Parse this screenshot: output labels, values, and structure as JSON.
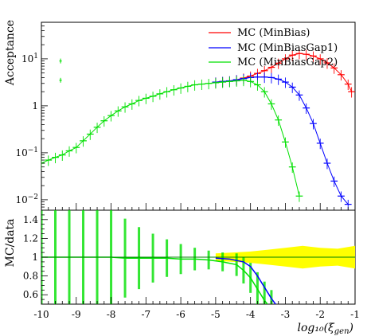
{
  "chart_data": [
    {
      "type": "line",
      "ylabel": "Acceptance",
      "y_scale": "log",
      "xlim": [
        -10,
        -1
      ],
      "ylim": [
        0.006,
        60
      ],
      "yticks": [
        {
          "value": 0.01,
          "base": "10",
          "exp": "−2"
        },
        {
          "value": 0.1,
          "base": "10",
          "exp": "−1"
        },
        {
          "value": 1,
          "base": "1",
          "exp": ""
        },
        {
          "value": 10,
          "base": "10",
          "exp": "1"
        }
      ],
      "legend_position": "top-right",
      "series": [
        {
          "name": "MC (MinBias)",
          "color": "#ff0000",
          "x": [
            -5.0,
            -4.8,
            -4.6,
            -4.4,
            -4.2,
            -4.0,
            -3.8,
            -3.6,
            -3.4,
            -3.2,
            -3.0,
            -2.8,
            -2.6,
            -2.4,
            -2.2,
            -2.0,
            -1.8,
            -1.6,
            -1.4,
            -1.2,
            -1.1
          ],
          "y": [
            3.2,
            3.3,
            3.4,
            3.6,
            3.9,
            4.3,
            4.9,
            5.6,
            6.6,
            8.1,
            10.0,
            12.0,
            13.0,
            12.5,
            11.5,
            10.0,
            8.2,
            6.4,
            4.6,
            2.9,
            2.0
          ]
        },
        {
          "name": "MC (MinBiasGap1)",
          "color": "#0000ff",
          "x": [
            -5.0,
            -4.8,
            -4.6,
            -4.4,
            -4.2,
            -4.0,
            -3.8,
            -3.6,
            -3.4,
            -3.2,
            -3.0,
            -2.8,
            -2.6,
            -2.4,
            -2.2,
            -2.0,
            -1.8,
            -1.6,
            -1.4,
            -1.2
          ],
          "y": [
            3.2,
            3.3,
            3.4,
            3.6,
            3.8,
            4.0,
            4.1,
            4.1,
            4.0,
            3.7,
            3.2,
            2.5,
            1.7,
            0.9,
            0.42,
            0.16,
            0.06,
            0.025,
            0.012,
            0.008
          ]
        },
        {
          "name": "MC (MinBiasGap2)",
          "color": "#00e000",
          "x": [
            -10.0,
            -9.8,
            -9.6,
            -9.4,
            -9.2,
            -9.0,
            -8.8,
            -8.6,
            -8.4,
            -8.2,
            -8.0,
            -7.8,
            -7.6,
            -7.4,
            -7.2,
            -7.0,
            -6.8,
            -6.6,
            -6.4,
            -6.2,
            -6.0,
            -5.8,
            -5.6,
            -5.4,
            -5.2,
            -5.0,
            -4.8,
            -4.6,
            -4.4,
            -4.2,
            -4.0,
            -3.8,
            -3.6,
            -3.4,
            -3.2,
            -3.0,
            -2.8,
            -2.6
          ],
          "y": [
            0.06,
            0.07,
            0.08,
            0.09,
            0.11,
            0.13,
            0.18,
            0.25,
            0.35,
            0.48,
            0.62,
            0.78,
            0.95,
            1.1,
            1.3,
            1.45,
            1.6,
            1.8,
            2.0,
            2.2,
            2.4,
            2.6,
            2.8,
            2.9,
            3.0,
            3.1,
            3.2,
            3.3,
            3.4,
            3.5,
            3.3,
            2.8,
            2.0,
            1.1,
            0.5,
            0.17,
            0.05,
            0.012
          ]
        }
      ],
      "isolated_points": [
        {
          "x": -9.45,
          "y": 9.0,
          "color": "#00e000"
        },
        {
          "x": -9.45,
          "y": 3.5,
          "color": "#00e000"
        }
      ]
    },
    {
      "type": "line",
      "ylabel": "MC/data",
      "xlabel": "log₁₀(ξ",
      "xlabel_sub": "gen",
      "xlabel_close": ")",
      "xlim": [
        -10,
        -1
      ],
      "ylim": [
        0.5,
        1.5
      ],
      "xticks": [
        -10,
        -9,
        -8,
        -7,
        -6,
        -5,
        -4,
        -3,
        -2,
        -1
      ],
      "xtick_labels": [
        "-10",
        "-9",
        "-8",
        "-7",
        "-6",
        "-5",
        "-4",
        "-3",
        "-2",
        "-1"
      ],
      "yticks": [
        0.6,
        0.8,
        1.0,
        1.2,
        1.4
      ],
      "ytick_labels": [
        "0.6",
        "0.8",
        "1",
        "1.2",
        "1.4"
      ],
      "reference_line": 1.0,
      "band": {
        "color": "#ffff00",
        "x": [
          -5.0,
          -4.5,
          -4.0,
          -3.5,
          -3.0,
          -2.5,
          -2.0,
          -1.5,
          -1.0
        ],
        "half_width": [
          0.04,
          0.05,
          0.06,
          0.08,
          0.1,
          0.12,
          0.1,
          0.09,
          0.12
        ]
      },
      "series": [
        {
          "name": "MC (MinBias)",
          "color": "#ff0000",
          "x": [
            -5.0,
            -4.0,
            -3.0,
            -2.0,
            -1.0
          ],
          "y": [
            1.0,
            1.0,
            1.0,
            1.0,
            1.0
          ]
        },
        {
          "name": "MC (MinBiasGap1)",
          "color": "#0000ff",
          "x": [
            -5.0,
            -4.6,
            -4.2,
            -4.0,
            -3.8,
            -3.6,
            -3.4,
            -3.2
          ],
          "y": [
            0.99,
            0.98,
            0.95,
            0.9,
            0.8,
            0.68,
            0.56,
            0.46
          ]
        },
        {
          "name": "MC (MinBiasGap2)",
          "color": "#00e000",
          "x": [
            -10.0,
            -9.6,
            -9.2,
            -8.8,
            -8.4,
            -8.0,
            -7.6,
            -7.2,
            -6.8,
            -6.4,
            -6.0,
            -5.6,
            -5.2,
            -4.8,
            -4.4,
            -4.2,
            -4.0,
            -3.8,
            -3.6,
            -3.4
          ],
          "y": [
            1.0,
            1.0,
            1.0,
            1.0,
            1.0,
            1.0,
            0.99,
            0.99,
            0.99,
            0.99,
            0.98,
            0.98,
            0.97,
            0.95,
            0.92,
            0.86,
            0.78,
            0.66,
            0.54,
            0.45
          ],
          "error": [
            0.8,
            0.8,
            0.75,
            0.7,
            0.6,
            0.52,
            0.42,
            0.33,
            0.26,
            0.2,
            0.16,
            0.12,
            0.1,
            0.1,
            0.12,
            0.14,
            0.16,
            0.18,
            0.2,
            0.2
          ]
        }
      ]
    }
  ]
}
